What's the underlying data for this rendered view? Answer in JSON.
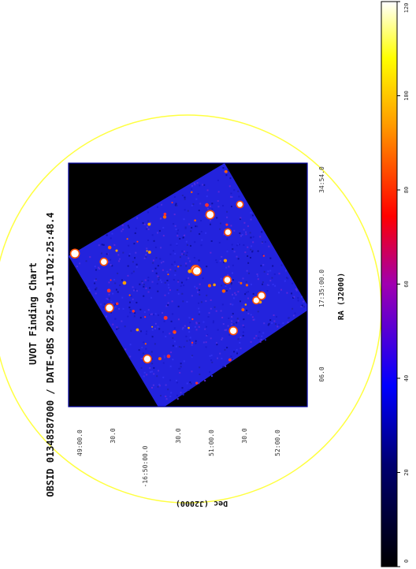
{
  "chart_data": {
    "type": "heatmap",
    "title": "UVOT Finding Chart",
    "subtitle": "OBSID 01348587000 / DATE-OBS 2025-09-11T02:25:48.4",
    "xlabel": "RA (J2000)",
    "ylabel": "Dec (J2000)",
    "ra_tick_labels": [
      "06.0",
      "17:35:00.0",
      "34:54.0"
    ],
    "dec_tick_labels": [
      "49:00.0",
      "30.0",
      "-16:50:00.0",
      "30.0",
      "51:00.0",
      "30.0",
      "52:00.0"
    ],
    "colorbar": {
      "range": [
        0,
        120
      ],
      "ticks": [
        0,
        20,
        40,
        60,
        80,
        100,
        120
      ],
      "colormap": [
        "#000000",
        "#0000ff",
        "#ff0000",
        "#ffff00",
        "#ffffff"
      ]
    },
    "colors": {
      "background_field": "#2323dd",
      "frame": "#0000a0",
      "circle": "#ffff40",
      "empty": "#000000"
    },
    "orientation": "rotated 90 degrees counter-clockwise",
    "grid": false
  }
}
